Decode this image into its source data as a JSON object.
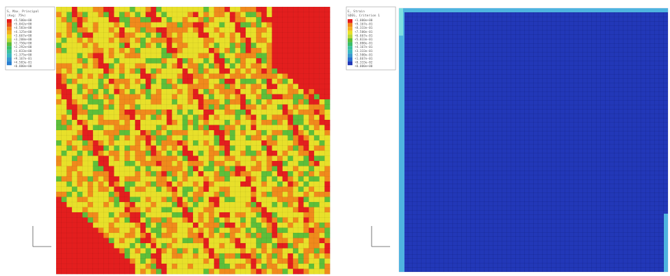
{
  "panels": [
    {
      "id": "left",
      "description": "FE contour plot - diagonal band pattern",
      "legend": {
        "line1": "S, Max. Principal",
        "line2": "(Avg: 75%)",
        "levels": [
          "+5.500e+00",
          "+5.042e+00",
          "+4.583e+00",
          "+4.125e+00",
          "+3.667e+00",
          "+3.208e+00",
          "+2.750e+00",
          "+2.292e+00",
          "+1.833e+00",
          "+1.375e+00",
          "+9.167e-01",
          "+4.583e-01",
          "+0.000e+00"
        ]
      },
      "colors": {
        "red": "#e31e1e",
        "orange": "#f08a1c",
        "yellow": "#e8e02a",
        "green": "#5dbe3a",
        "cyan": "#3cb8c4",
        "blue": "#2a7ed0"
      }
    },
    {
      "id": "right",
      "description": "FE contour plot - mostly uniform low values",
      "legend": {
        "line1": "E, Strain",
        "line2": "SDEG, Criterion 1",
        "levels": [
          "+1.000e+00",
          "+9.167e-01",
          "+8.333e-01",
          "+7.500e-01",
          "+6.667e-01",
          "+5.833e-01",
          "+5.000e-01",
          "+4.167e-01",
          "+3.333e-01",
          "+2.500e-01",
          "+1.667e-01",
          "+8.333e-02",
          "+0.000e+00"
        ]
      },
      "colors": {
        "base": "#2238b8",
        "edge": "#4fb4e0",
        "edge2": "#7fe0e0"
      }
    }
  ]
}
